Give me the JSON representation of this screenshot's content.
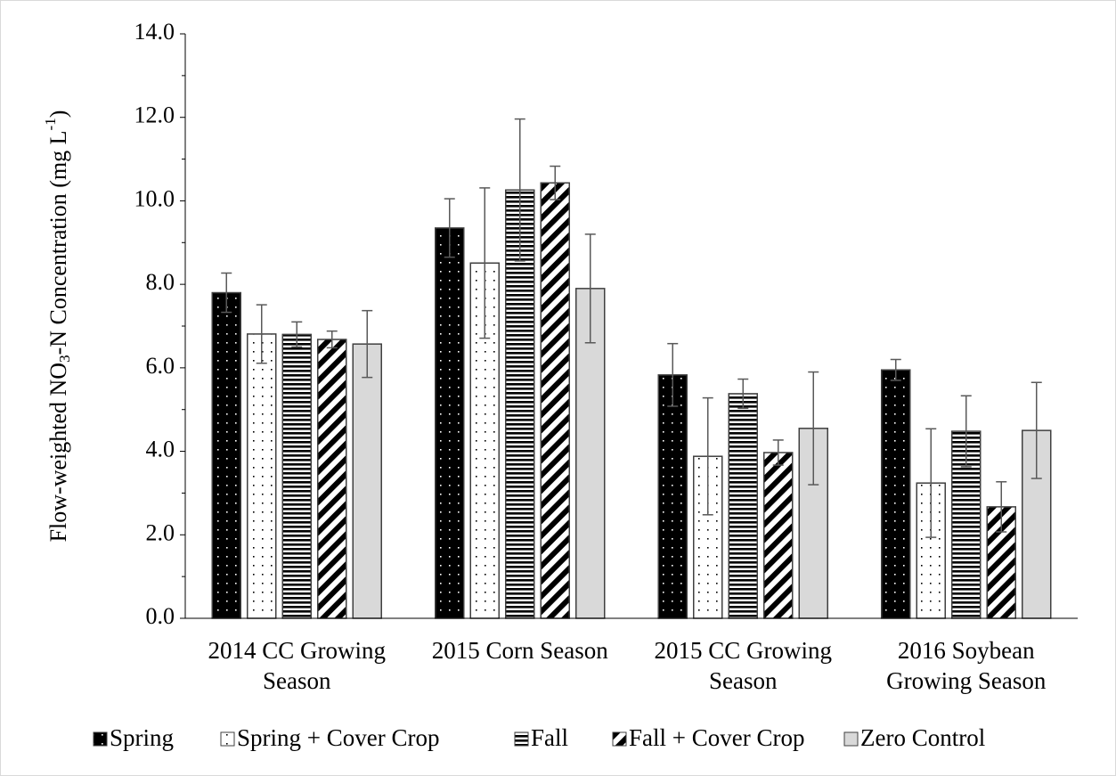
{
  "chart_data": {
    "type": "bar",
    "ylabel": [
      "Flow-weighted NO",
      "3",
      "-N Concentration (mg L",
      "-1",
      ")"
    ],
    "categories": [
      [
        "2014 CC Growing",
        "Season"
      ],
      [
        "2015 Corn Season"
      ],
      [
        "2015 CC Growing",
        "Season"
      ],
      [
        "2016 Soybean",
        "Growing Season"
      ]
    ],
    "series": [
      {
        "name": "Spring",
        "color": "#000000",
        "pattern": "dots-light",
        "values": [
          7.8,
          9.35,
          5.83,
          5.95
        ],
        "errors": [
          0.47,
          0.7,
          0.75,
          0.25
        ]
      },
      {
        "name": "Spring + Cover Crop",
        "color": "#ffffff",
        "pattern": "dots",
        "values": [
          6.81,
          8.51,
          3.88,
          3.24
        ],
        "errors": [
          0.7,
          1.8,
          1.4,
          1.3
        ]
      },
      {
        "name": "Fall",
        "color": "#000000",
        "pattern": "hstripes",
        "values": [
          6.8,
          10.26,
          5.38,
          4.48
        ],
        "errors": [
          0.3,
          1.7,
          0.35,
          0.85
        ]
      },
      {
        "name": "Fall + Cover Crop",
        "color": "#000000",
        "pattern": "diagonal",
        "values": [
          6.68,
          10.43,
          3.97,
          2.67
        ],
        "errors": [
          0.2,
          0.4,
          0.3,
          0.6
        ]
      },
      {
        "name": "Zero Control",
        "color": "#d9d9d9",
        "pattern": "solid",
        "values": [
          6.57,
          7.9,
          4.55,
          4.5
        ],
        "errors": [
          0.8,
          1.3,
          1.35,
          1.15
        ]
      }
    ],
    "ylim": [
      0,
      14
    ],
    "yticks": [
      {
        "value": 0,
        "label": "0.0"
      },
      {
        "value": 2,
        "label": "2.0"
      },
      {
        "value": 4,
        "label": "4.0"
      },
      {
        "value": 6,
        "label": "6.0"
      },
      {
        "value": 8,
        "label": "8.0"
      },
      {
        "value": 10,
        "label": "10.0"
      },
      {
        "value": 12,
        "label": "12.0"
      },
      {
        "value": 14,
        "label": "14.0"
      }
    ],
    "legend": "bottom"
  }
}
